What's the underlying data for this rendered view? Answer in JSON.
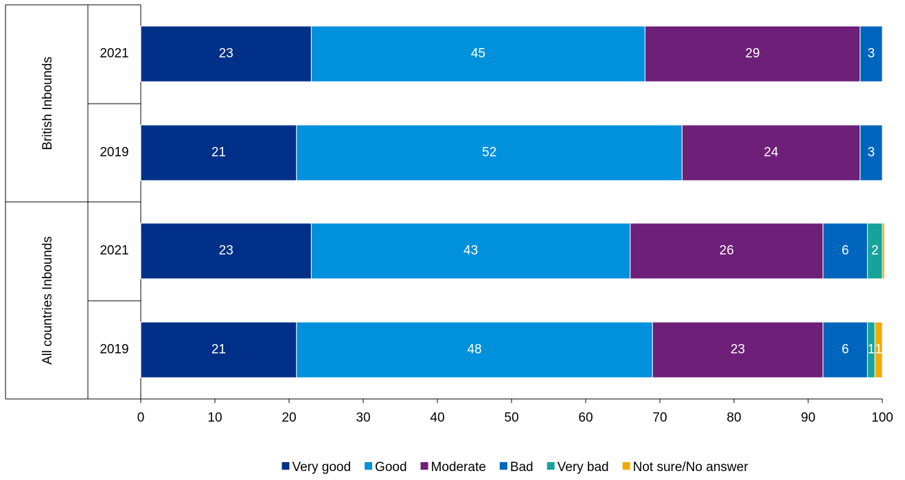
{
  "chart_data": {
    "type": "bar",
    "orientation": "horizontal",
    "stacked": true,
    "groups": [
      {
        "label": "British Inbounds",
        "years": [
          "2021",
          "2019"
        ]
      },
      {
        "label": "All countries Inbounds",
        "years": [
          "2021",
          "2019"
        ]
      }
    ],
    "categories": [
      "British Inbounds 2021",
      "British Inbounds 2019",
      "All countries Inbounds 2021",
      "All countries Inbounds 2019"
    ],
    "series": [
      {
        "name": "Very good",
        "color": "#003087",
        "values": [
          23,
          21,
          23,
          21
        ],
        "labels": [
          "23",
          "21",
          "23",
          "21"
        ]
      },
      {
        "name": "Good",
        "color": "#0090dc",
        "values": [
          45,
          52,
          43,
          48
        ],
        "labels": [
          "45",
          "52",
          "43",
          "48"
        ]
      },
      {
        "name": "Moderate",
        "color": "#6e1f78",
        "values": [
          29,
          24,
          26,
          23
        ],
        "labels": [
          "29",
          "24",
          "26",
          "23"
        ]
      },
      {
        "name": "Bad",
        "color": "#0065bd",
        "values": [
          3,
          3,
          6,
          6
        ],
        "labels": [
          "3",
          "3",
          "6",
          "6"
        ]
      },
      {
        "name": "Very bad",
        "color": "#17a39a",
        "values": [
          0,
          0,
          2,
          1
        ],
        "labels": [
          "",
          "",
          "2",
          "1"
        ]
      },
      {
        "name": "Not sure/No answer",
        "color": "#f0ab00",
        "values": [
          0,
          0,
          0.3,
          1
        ],
        "labels": [
          "",
          "",
          "",
          "1"
        ]
      }
    ],
    "xlim": [
      0,
      100
    ],
    "xticks": [
      "0",
      "10",
      "20",
      "30",
      "40",
      "50",
      "60",
      "70",
      "80",
      "90",
      "100"
    ],
    "grid": false,
    "legend_position": "bottom"
  }
}
